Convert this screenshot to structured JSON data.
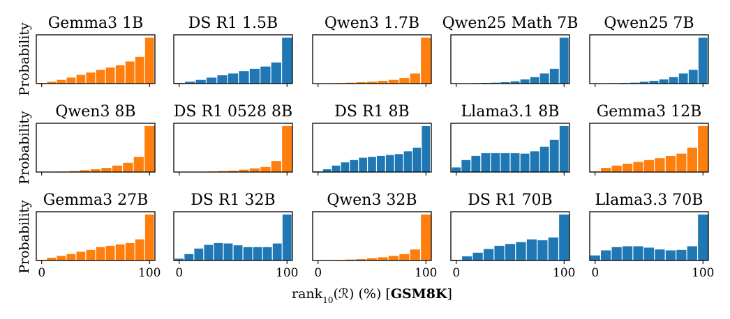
{
  "figure": {
    "ylabel": "Probability",
    "xlabel": {
      "prefix": "rank",
      "subscript": "10",
      "middle": "(ℛ) (%) [",
      "dataset": "GSM8K",
      "suffix": "]"
    },
    "colors": {
      "orange": "#ff7f0e",
      "blue": "#1f77b4"
    }
  },
  "chart_data": [
    {
      "type": "bar",
      "title": "Gemma3 1B",
      "color": "orange",
      "xticks": [
        0,
        100
      ],
      "xlim": [
        -5,
        105
      ],
      "ylim": [
        0,
        1
      ],
      "values": [
        0.015,
        0.04,
        0.08,
        0.13,
        0.19,
        0.24,
        0.3,
        0.35,
        0.4,
        0.48,
        0.58,
        1.0
      ]
    },
    {
      "type": "bar",
      "title": "DS R1 1.5B",
      "color": "blue",
      "xticks": [
        0,
        100
      ],
      "xlim": [
        -5,
        105
      ],
      "ylim": [
        0,
        1
      ],
      "values": [
        0.015,
        0.04,
        0.08,
        0.13,
        0.18,
        0.22,
        0.27,
        0.32,
        0.37,
        0.46,
        1.0
      ]
    },
    {
      "type": "bar",
      "title": "Qwen3 1.7B",
      "color": "orange",
      "xticks": [
        0,
        100
      ],
      "xlim": [
        -5,
        105
      ],
      "ylim": [
        0,
        1
      ],
      "values": [
        0.005,
        0.008,
        0.012,
        0.02,
        0.03,
        0.04,
        0.06,
        0.08,
        0.12,
        0.22,
        1.0
      ]
    },
    {
      "type": "bar",
      "title": "Qwen25 Math 7B",
      "color": "blue",
      "xticks": [
        0,
        100
      ],
      "xlim": [
        -5,
        105
      ],
      "ylim": [
        0,
        1
      ],
      "values": [
        0.0,
        0.005,
        0.01,
        0.015,
        0.02,
        0.03,
        0.05,
        0.09,
        0.14,
        0.22,
        0.32,
        1.0
      ]
    },
    {
      "type": "bar",
      "title": "Qwen25 7B",
      "color": "blue",
      "xticks": [
        0,
        100
      ],
      "xlim": [
        -5,
        105
      ],
      "ylim": [
        0,
        1
      ],
      "values": [
        0.0,
        0.005,
        0.01,
        0.015,
        0.02,
        0.04,
        0.06,
        0.09,
        0.14,
        0.22,
        0.3,
        1.0
      ]
    },
    {
      "type": "bar",
      "title": "Qwen3 8B",
      "color": "orange",
      "xticks": [
        0,
        100
      ],
      "xlim": [
        -5,
        105
      ],
      "ylim": [
        0,
        1
      ],
      "values": [
        0.0,
        0.005,
        0.01,
        0.02,
        0.04,
        0.06,
        0.09,
        0.14,
        0.2,
        0.33,
        1.0
      ]
    },
    {
      "type": "bar",
      "title": "DS R1 0528 8B",
      "color": "orange",
      "xticks": [
        0,
        100
      ],
      "xlim": [
        -5,
        105
      ],
      "ylim": [
        0,
        1
      ],
      "values": [
        0.0,
        0.005,
        0.008,
        0.012,
        0.02,
        0.03,
        0.05,
        0.08,
        0.11,
        0.24,
        1.0
      ]
    },
    {
      "type": "bar",
      "title": "DS R1 8B",
      "color": "blue",
      "xticks": [
        0,
        100
      ],
      "xlim": [
        -5,
        105
      ],
      "ylim": [
        0,
        1
      ],
      "values": [
        0.015,
        0.06,
        0.14,
        0.21,
        0.26,
        0.31,
        0.33,
        0.35,
        0.37,
        0.39,
        0.45,
        0.53,
        1.0
      ]
    },
    {
      "type": "bar",
      "title": "Llama3.1 8B",
      "color": "blue",
      "xticks": [
        0,
        100
      ],
      "xlim": [
        -5,
        105
      ],
      "ylim": [
        0,
        1
      ],
      "values": [
        0.1,
        0.26,
        0.35,
        0.41,
        0.41,
        0.41,
        0.41,
        0.4,
        0.45,
        0.55,
        0.7,
        1.0
      ]
    },
    {
      "type": "bar",
      "title": "Gemma3 12B",
      "color": "orange",
      "xticks": [
        0,
        100
      ],
      "xlim": [
        -5,
        105
      ],
      "ylim": [
        0,
        1
      ],
      "values": [
        0.015,
        0.09,
        0.14,
        0.18,
        0.22,
        0.26,
        0.3,
        0.35,
        0.4,
        0.53,
        1.0
      ]
    },
    {
      "type": "bar",
      "title": "Gemma3 27B",
      "color": "orange",
      "xticks": [
        0,
        100
      ],
      "xlim": [
        -5,
        105
      ],
      "ylim": [
        0,
        1
      ],
      "values": [
        0.015,
        0.06,
        0.1,
        0.14,
        0.19,
        0.23,
        0.29,
        0.32,
        0.35,
        0.38,
        0.46,
        1.0
      ]
    },
    {
      "type": "bar",
      "title": "DS R1 32B",
      "color": "blue",
      "xticks": [
        0,
        100
      ],
      "xlim": [
        -5,
        105
      ],
      "ylim": [
        0,
        1
      ],
      "values": [
        0.04,
        0.14,
        0.26,
        0.34,
        0.38,
        0.37,
        0.33,
        0.29,
        0.29,
        0.29,
        0.37,
        1.0
      ]
    },
    {
      "type": "bar",
      "title": "Qwen3 32B",
      "color": "orange",
      "xticks": [
        0,
        100
      ],
      "xlim": [
        -5,
        105
      ],
      "ylim": [
        0,
        1
      ],
      "values": [
        0.0,
        0.005,
        0.01,
        0.02,
        0.03,
        0.05,
        0.07,
        0.1,
        0.14,
        0.24,
        1.0
      ]
    },
    {
      "type": "bar",
      "title": "DS R1 70B",
      "color": "blue",
      "xticks": [
        0,
        100
      ],
      "xlim": [
        -5,
        105
      ],
      "ylim": [
        0,
        1
      ],
      "values": [
        0.015,
        0.09,
        0.17,
        0.25,
        0.32,
        0.36,
        0.4,
        0.46,
        0.44,
        0.5,
        1.0
      ]
    },
    {
      "type": "bar",
      "title": "Llama3.3 70B",
      "color": "blue",
      "xticks": [
        0,
        100
      ],
      "xlim": [
        -5,
        105
      ],
      "ylim": [
        0,
        1
      ],
      "values": [
        0.11,
        0.22,
        0.29,
        0.31,
        0.31,
        0.28,
        0.24,
        0.22,
        0.23,
        0.31,
        1.0
      ]
    }
  ]
}
